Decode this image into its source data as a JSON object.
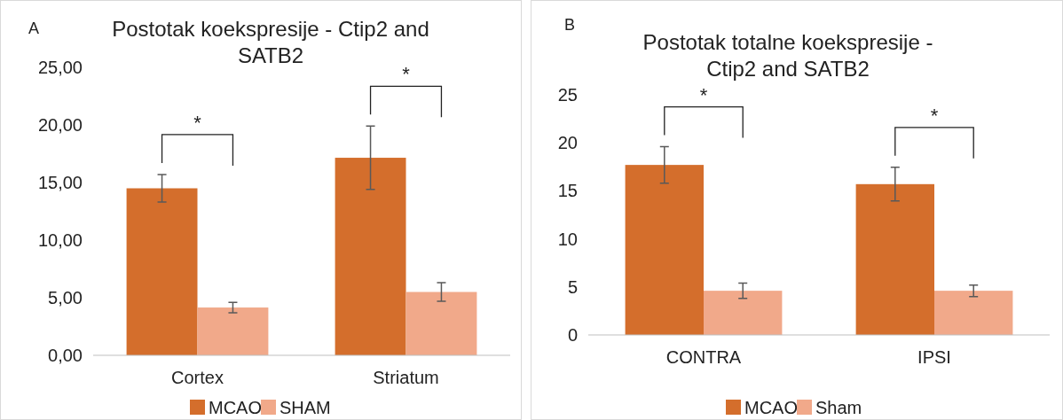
{
  "chart_data": [
    {
      "type": "bar",
      "title": "Postotak koekspresije - Ctip2 and SATB2",
      "categories": [
        "Cortex",
        "Striatum"
      ],
      "series": [
        {
          "name": "MCAO",
          "color": "#d46e2c",
          "values": [
            14.5,
            17.15
          ],
          "errors": [
            1.2,
            2.75
          ]
        },
        {
          "name": "SHAM",
          "color": "#f1a98a",
          "values": [
            4.15,
            5.5
          ],
          "errors": [
            0.45,
            0.8
          ]
        }
      ],
      "ylim": [
        0,
        25
      ],
      "yticks": [
        {
          "value": 0,
          "label": "0,00"
        },
        {
          "value": 5,
          "label": "5,00"
        },
        {
          "value": 10,
          "label": "10,00"
        },
        {
          "value": 15,
          "label": "15,00"
        },
        {
          "value": 20,
          "label": "20,00"
        },
        {
          "value": 25,
          "label": "25,00"
        }
      ],
      "grid": false,
      "legend": "bottom",
      "annotations": [
        "A",
        "*",
        "*"
      ]
    },
    {
      "type": "bar",
      "title": "Postotak totalne koekspresije - Ctip2 and SATB2",
      "categories": [
        "CONTRA",
        "IPSI"
      ],
      "series": [
        {
          "name": "MCAO",
          "color": "#d46e2c",
          "values": [
            17.7,
            15.7
          ],
          "errors": [
            1.9,
            1.75
          ]
        },
        {
          "name": "Sham",
          "color": "#f1a98a",
          "values": [
            4.6,
            4.6
          ],
          "errors": [
            0.8,
            0.6
          ]
        }
      ],
      "ylim": [
        0,
        25
      ],
      "yticks": [
        0,
        5,
        10,
        15,
        20,
        25
      ],
      "grid": false,
      "legend": "bottom",
      "annotations": [
        "B",
        "*",
        "*"
      ]
    }
  ]
}
